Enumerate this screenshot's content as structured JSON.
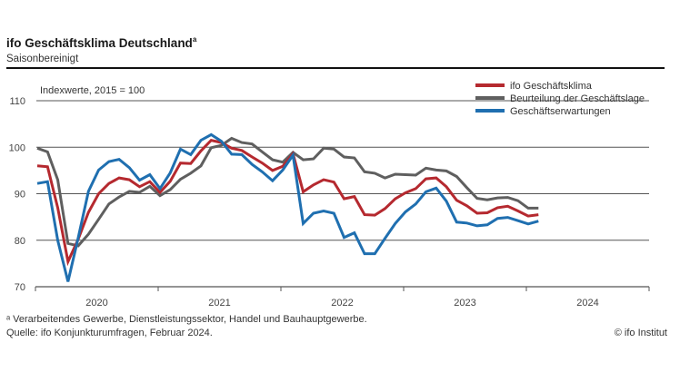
{
  "header": {
    "title": "ifo Geschäftsklima Deutschland",
    "title_sup": "a",
    "subtitle": "Saisonbereinigt"
  },
  "footer": {
    "footnote": "ᵃ Verarbeitendes Gewerbe, Dienstleistungssektor, Handel und Bauhauptgewerbe.",
    "source": "Quelle: ifo Konjunkturumfragen, Februar 2024.",
    "copyright": "© ifo Institut"
  },
  "chart_data": {
    "type": "line",
    "title": "ifo Geschäftsklima Deutschland",
    "subtitle": "Saisonbereinigt",
    "annotation": "Indexwerte, 2015 = 100",
    "xlabel": "",
    "ylabel": "",
    "ylim": [
      70,
      110
    ],
    "yticks": [
      70,
      80,
      90,
      100,
      110
    ],
    "xticks": [
      "2020",
      "2021",
      "2022",
      "2023",
      "2024"
    ],
    "x_range": [
      "2020-01",
      "2024-12"
    ],
    "grid": true,
    "legend_position": "top-right",
    "x": [
      "2020-01",
      "2020-02",
      "2020-03",
      "2020-04",
      "2020-05",
      "2020-06",
      "2020-07",
      "2020-08",
      "2020-09",
      "2020-10",
      "2020-11",
      "2020-12",
      "2021-01",
      "2021-02",
      "2021-03",
      "2021-04",
      "2021-05",
      "2021-06",
      "2021-07",
      "2021-08",
      "2021-09",
      "2021-10",
      "2021-11",
      "2021-12",
      "2022-01",
      "2022-02",
      "2022-03",
      "2022-04",
      "2022-05",
      "2022-06",
      "2022-07",
      "2022-08",
      "2022-09",
      "2022-10",
      "2022-11",
      "2022-12",
      "2023-01",
      "2023-02",
      "2023-03",
      "2023-04",
      "2023-05",
      "2023-06",
      "2023-07",
      "2023-08",
      "2023-09",
      "2023-10",
      "2023-11",
      "2023-12",
      "2024-01",
      "2024-02"
    ],
    "series": [
      {
        "name": "ifo Geschäftsklima",
        "color": "#b5292f",
        "values": [
          96.0,
          95.8,
          87.0,
          75.4,
          80.2,
          86.0,
          90.0,
          92.2,
          93.4,
          93.0,
          91.5,
          92.6,
          90.3,
          92.7,
          96.6,
          96.5,
          99.2,
          101.5,
          101.0,
          99.8,
          99.3,
          97.9,
          96.6,
          95.0,
          95.9,
          98.6,
          90.4,
          91.9,
          93.0,
          92.5,
          88.9,
          89.4,
          85.5,
          85.4,
          86.8,
          88.9,
          90.2,
          91.1,
          93.2,
          93.4,
          91.5,
          88.6,
          87.4,
          85.8,
          85.9,
          87.0,
          87.3,
          86.3,
          85.2,
          85.5
        ]
      },
      {
        "name": "Beurteilung der Geschäftslage",
        "color": "#5f5f5f",
        "values": [
          99.8,
          99.0,
          93.0,
          79.3,
          78.8,
          81.3,
          84.5,
          87.8,
          89.3,
          90.5,
          90.3,
          91.6,
          89.6,
          90.9,
          93.1,
          94.4,
          96.0,
          99.9,
          100.4,
          101.9,
          101.0,
          100.7,
          99.0,
          97.3,
          96.8,
          98.9,
          97.3,
          97.5,
          99.8,
          99.6,
          97.9,
          97.7,
          94.7,
          94.4,
          93.4,
          94.2,
          94.1,
          94.0,
          95.5,
          95.1,
          94.9,
          93.7,
          91.3,
          89.0,
          88.7,
          89.1,
          89.2,
          88.5,
          86.9,
          86.9
        ]
      },
      {
        "name": "Geschäftserwartungen",
        "color": "#1f6fb0",
        "values": [
          92.2,
          92.6,
          80.0,
          71.1,
          80.5,
          90.5,
          95.1,
          96.9,
          97.4,
          95.6,
          92.9,
          94.1,
          91.1,
          94.5,
          99.6,
          98.4,
          101.5,
          102.7,
          101.3,
          98.5,
          98.4,
          96.3,
          94.7,
          92.8,
          95.1,
          98.3,
          83.6,
          85.8,
          86.3,
          85.8,
          80.6,
          81.6,
          77.1,
          77.1,
          80.4,
          83.6,
          86.1,
          87.8,
          90.4,
          91.2,
          88.4,
          83.9,
          83.7,
          83.1,
          83.3,
          84.7,
          84.9,
          84.2,
          83.5,
          84.1
        ]
      }
    ]
  }
}
